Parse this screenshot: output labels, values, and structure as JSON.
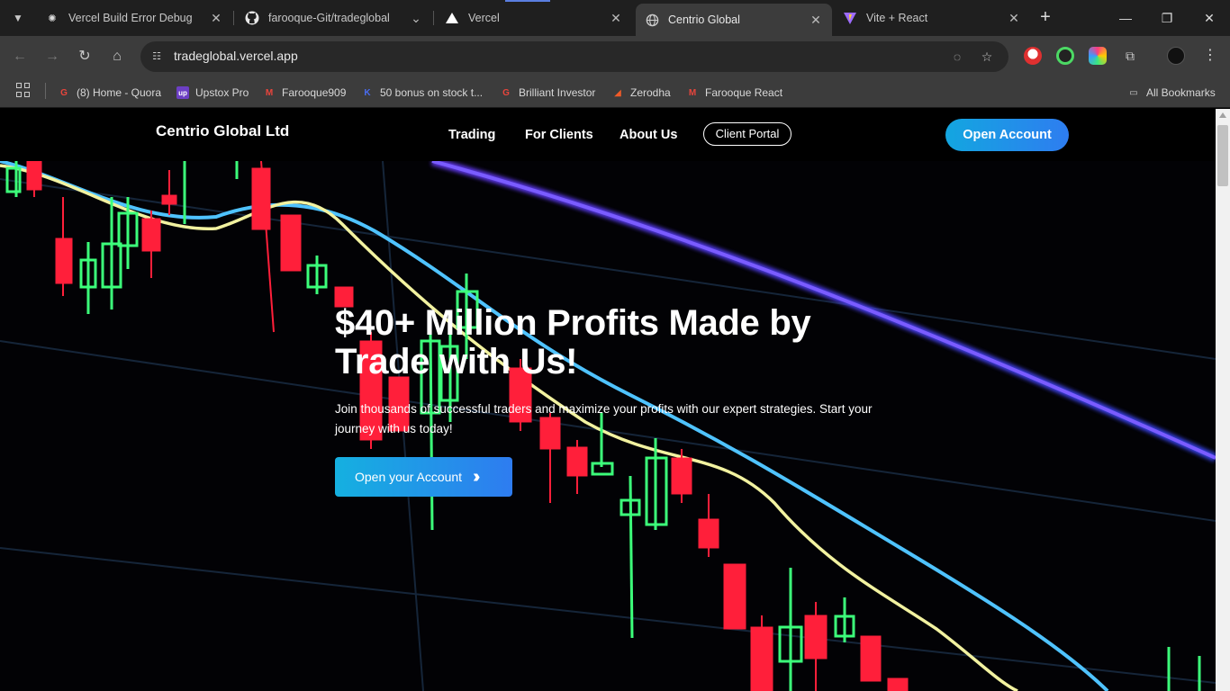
{
  "browser": {
    "tabs": [
      {
        "title": "Vercel Build Error Debug",
        "favicon": "openai-icon"
      },
      {
        "title": "farooque-Git/tradeglobal",
        "favicon": "github-icon"
      },
      {
        "title": "Vercel",
        "favicon": "vercel-triangle-icon"
      },
      {
        "title": "Centrio Global",
        "favicon": "globe-icon",
        "active": true
      },
      {
        "title": "Vite + React",
        "favicon": "vite-icon"
      }
    ],
    "url": "tradeglobal.vercel.app",
    "bookmarks": [
      {
        "label": "(8) Home - Quora",
        "icon_color": "#e8453c"
      },
      {
        "label": "Upstox Pro",
        "icon_color": "#6c3fc4"
      },
      {
        "label": "Farooque909",
        "icon_color": "#e8453c"
      },
      {
        "label": "50 bonus on stock t...",
        "icon_color": "#4a6cf0"
      },
      {
        "label": "Brilliant Investor",
        "icon_color": "#e8453c"
      },
      {
        "label": "Zerodha",
        "icon_color": "#f05a28"
      },
      {
        "label": "Farooque React",
        "icon_color": "#e8453c"
      }
    ],
    "all_bookmarks": "All Bookmarks"
  },
  "site": {
    "logo": "Centrio Global Ltd",
    "nav": [
      "Trading",
      "For Clients",
      "About Us"
    ],
    "client_portal": "Client Portal",
    "open_account": "Open Account",
    "hero": {
      "title": "$40+ Million Profits Made by Trade with Us!",
      "subtitle": "Join thousands of successful traders and maximize your profits with our expert strategies. Start your journey with us today!",
      "cta": "Open your Account"
    }
  },
  "colors": {
    "accent_start": "#13a6e0",
    "accent_end": "#2e7df0",
    "candle_red": "#ff1f3a",
    "candle_green": "#3cff7a"
  }
}
